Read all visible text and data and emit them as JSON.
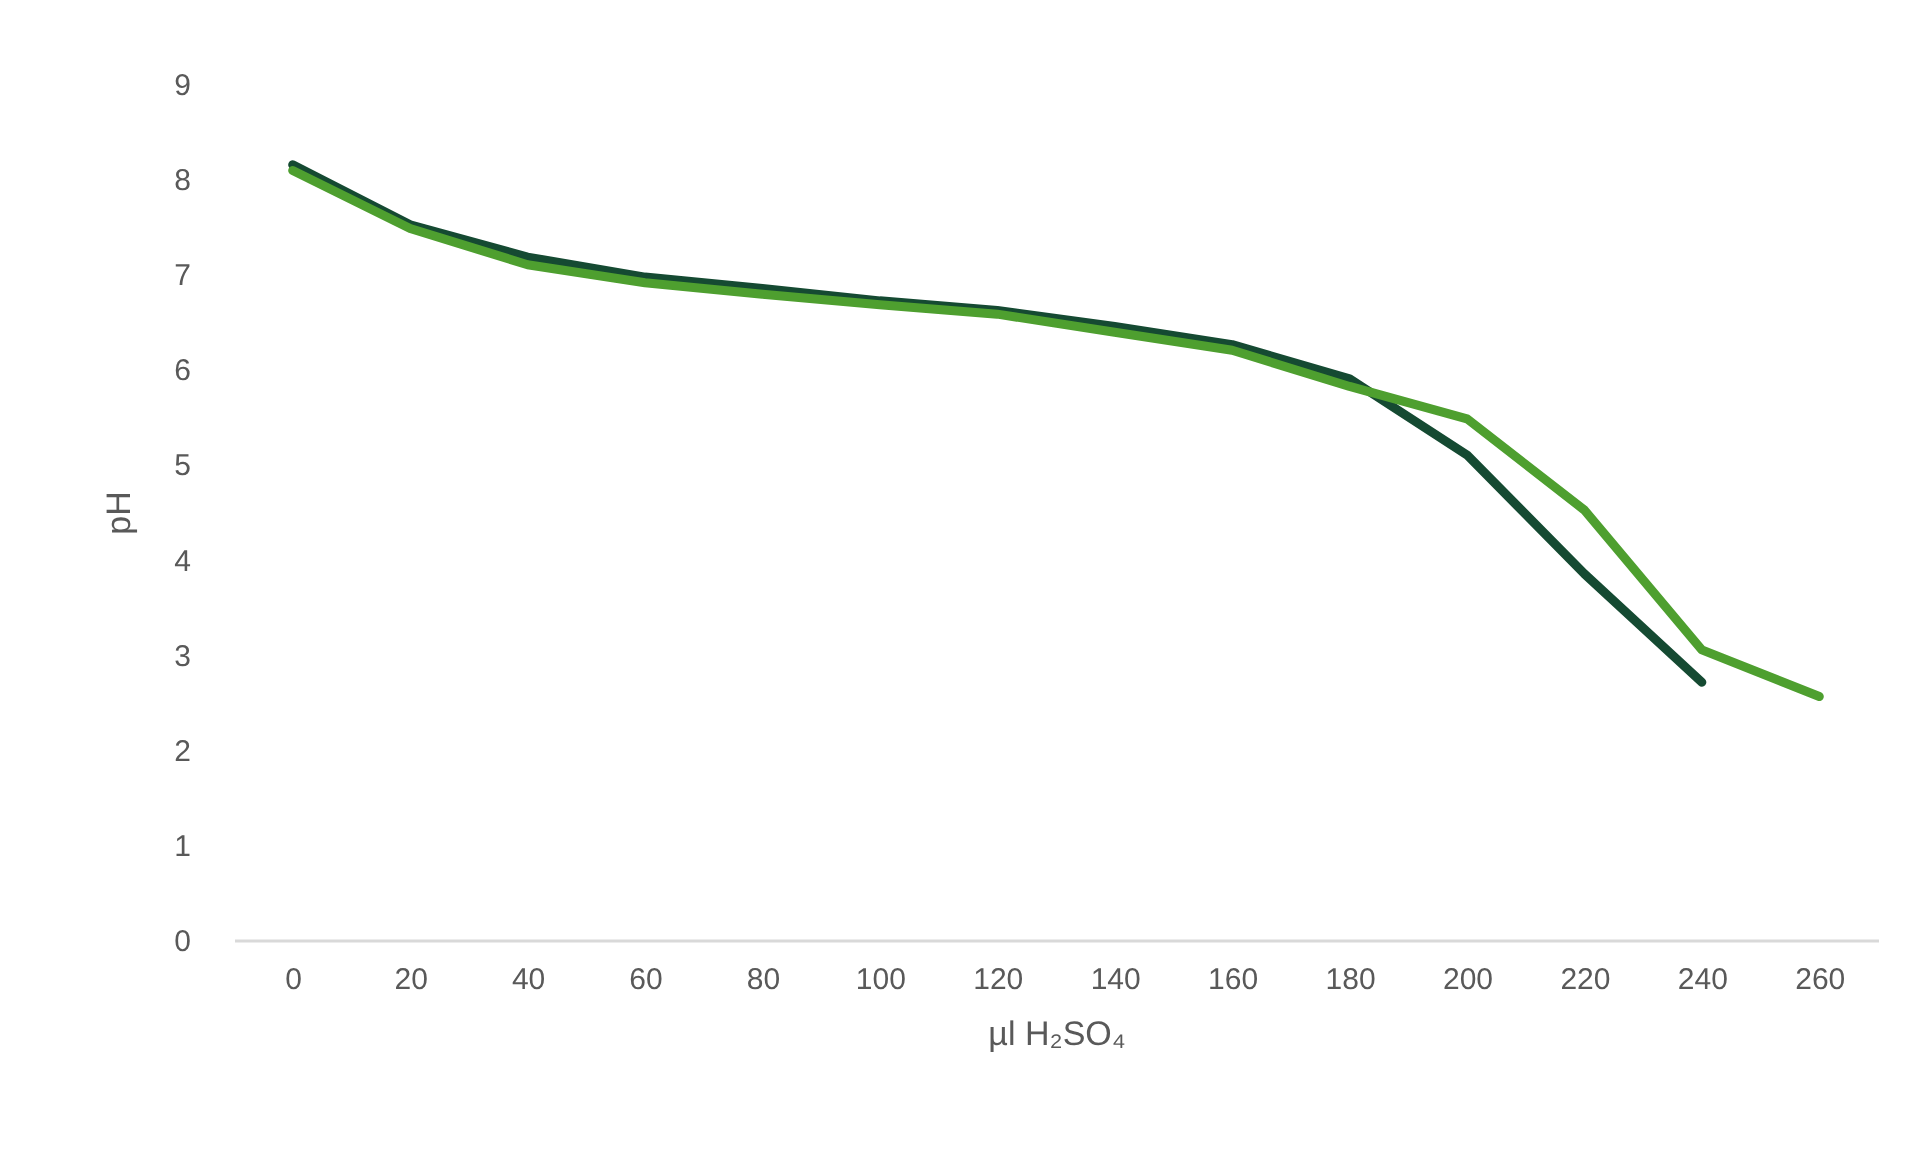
{
  "chart_data": {
    "type": "line",
    "xlabel": "µl H₂SO₄",
    "ylabel": "pH",
    "categories": [
      "0",
      "20",
      "40",
      "60",
      "80",
      "100",
      "120",
      "140",
      "160",
      "180",
      "200",
      "220",
      "240",
      "260"
    ],
    "series": [
      {
        "color": "#154a32",
        "values": [
          8.15,
          7.52,
          7.18,
          6.97,
          6.85,
          6.72,
          6.62,
          6.45,
          6.26,
          5.9,
          5.1,
          3.85,
          2.71,
          null
        ]
      },
      {
        "color": "#4e9f2f",
        "values": [
          8.09,
          7.48,
          7.1,
          6.91,
          6.79,
          6.68,
          6.58,
          6.39,
          6.2,
          5.82,
          5.48,
          4.52,
          3.05,
          2.56
        ]
      }
    ],
    "ylim": [
      0,
      9
    ],
    "yticks": [
      0,
      1,
      2,
      3,
      4,
      5,
      6,
      7,
      8,
      9
    ],
    "grid": false,
    "line_style": "solid"
  }
}
